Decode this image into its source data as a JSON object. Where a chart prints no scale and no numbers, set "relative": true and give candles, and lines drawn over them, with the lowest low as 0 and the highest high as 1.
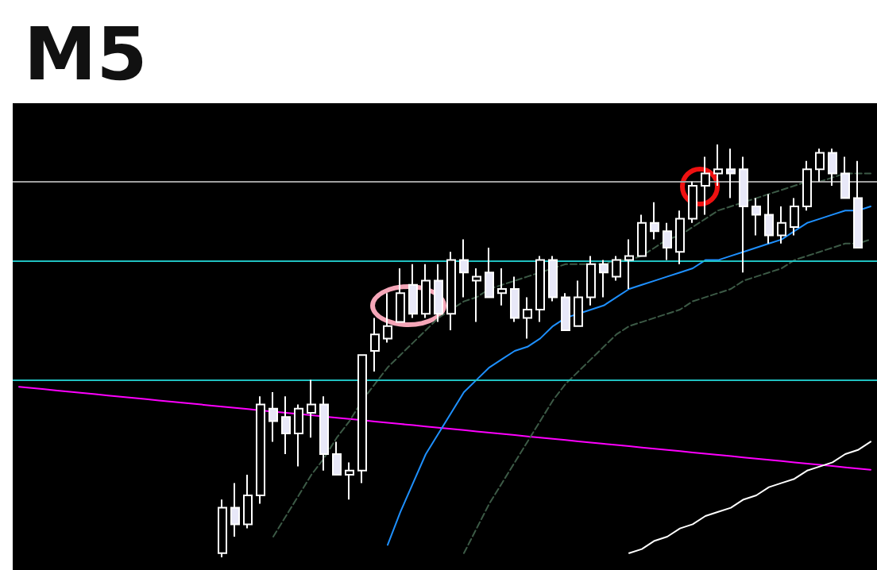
{
  "chart_data": {
    "type": "candlestick",
    "title": "M5",
    "relative": true,
    "grid": false,
    "categories": [
      null,
      null,
      null,
      null,
      null,
      null,
      null,
      null,
      null,
      null,
      null,
      null,
      null,
      null,
      null,
      null,
      null,
      null,
      null,
      null,
      null,
      null,
      null,
      null,
      null,
      null,
      null,
      null,
      null,
      null,
      null,
      null,
      null,
      null,
      null,
      null,
      null,
      null,
      null,
      null,
      null,
      null,
      null,
      null,
      null,
      null,
      null,
      null,
      null,
      null,
      null,
      null,
      null,
      null,
      null,
      null,
      null,
      null,
      null,
      null,
      null,
      null,
      null,
      null,
      null,
      null,
      null,
      null
    ],
    "ohlc": [
      null,
      null,
      null,
      null,
      null,
      null,
      null,
      null,
      null,
      null,
      null,
      null,
      null,
      null,
      null,
      null,
      [
        0.01,
        0.14,
        0,
        0.12
      ],
      [
        0.12,
        0.18,
        0.05,
        0.08
      ],
      [
        0.08,
        0.2,
        0.07,
        0.15
      ],
      [
        0.15,
        0.39,
        0.13,
        0.37
      ],
      [
        0.36,
        0.4,
        0.28,
        0.33
      ],
      [
        0.34,
        0.39,
        0.25,
        0.3
      ],
      [
        0.3,
        0.37,
        0.22,
        0.36
      ],
      [
        0.35,
        0.43,
        0.29,
        0.37
      ],
      [
        0.37,
        0.39,
        0.21,
        0.25
      ],
      [
        0.25,
        0.28,
        0.2,
        0.2
      ],
      [
        0.2,
        0.23,
        0.14,
        0.21
      ],
      [
        0.21,
        0.49,
        0.18,
        0.49
      ],
      [
        0.5,
        0.58,
        0.45,
        0.54
      ],
      [
        0.53,
        0.64,
        0.52,
        0.56
      ],
      [
        0.57,
        0.7,
        0.57,
        0.64
      ],
      [
        0.66,
        0.71,
        0.58,
        0.59
      ],
      [
        0.59,
        0.71,
        0.58,
        0.67
      ],
      [
        0.67,
        0.71,
        0.57,
        0.59
      ],
      [
        0.59,
        0.74,
        0.55,
        0.72
      ],
      [
        0.72,
        0.77,
        0.63,
        0.69
      ],
      [
        0.67,
        0.7,
        0.57,
        0.68
      ],
      [
        0.69,
        0.75,
        0.63,
        0.63
      ],
      [
        0.64,
        0.7,
        0.61,
        0.65
      ],
      [
        0.65,
        0.68,
        0.57,
        0.58
      ],
      [
        0.58,
        0.63,
        0.53,
        0.6
      ],
      [
        0.6,
        0.73,
        0.57,
        0.72
      ],
      [
        0.72,
        0.73,
        0.62,
        0.63
      ],
      [
        0.63,
        0.64,
        0.55,
        0.55
      ],
      [
        0.56,
        0.67,
        0.56,
        0.63
      ],
      [
        0.63,
        0.73,
        0.61,
        0.71
      ],
      [
        0.71,
        0.72,
        0.63,
        0.69
      ],
      [
        0.68,
        0.73,
        0.67,
        0.72
      ],
      [
        0.72,
        0.77,
        0.65,
        0.73
      ],
      [
        0.73,
        0.83,
        0.73,
        0.81
      ],
      [
        0.81,
        0.86,
        0.77,
        0.79
      ],
      [
        0.79,
        0.81,
        0.72,
        0.75
      ],
      [
        0.74,
        0.84,
        0.71,
        0.82
      ],
      [
        0.82,
        0.91,
        0.81,
        0.9
      ],
      [
        0.9,
        0.97,
        0.83,
        0.93
      ],
      [
        0.93,
        1,
        0.9,
        0.94
      ],
      [
        0.94,
        0.99,
        0.87,
        0.93
      ],
      [
        0.94,
        0.97,
        0.69,
        0.85
      ],
      [
        0.85,
        0.87,
        0.78,
        0.83
      ],
      [
        0.83,
        0.88,
        0.76,
        0.78
      ],
      [
        0.78,
        0.85,
        0.76,
        0.81
      ],
      [
        0.8,
        0.87,
        0.78,
        0.85
      ],
      [
        0.85,
        0.96,
        0.84,
        0.94
      ],
      [
        0.94,
        0.99,
        0.91,
        0.98
      ],
      [
        0.98,
        0.99,
        0.9,
        0.93
      ],
      [
        0.93,
        0.97,
        0.87,
        0.87
      ],
      [
        0.87,
        0.96,
        0.75,
        0.75
      ],
      null
    ],
    "series": [
      {
        "type": "line",
        "color": "#ff00ff",
        "line_style": "solid",
        "values": [
          0.413,
          0.41,
          0.407,
          0.404,
          0.401,
          0.398,
          0.395,
          0.392,
          0.389,
          0.386,
          0.383,
          0.38,
          0.377,
          0.374,
          0.371,
          0.368,
          0.365,
          0.362,
          0.359,
          0.356,
          0.353,
          0.35,
          0.347,
          0.344,
          0.341,
          0.338,
          0.335,
          0.332,
          0.329,
          0.326,
          0.323,
          0.32,
          0.317,
          0.314,
          0.311,
          0.308,
          0.305,
          0.302,
          0.299,
          0.296,
          0.293,
          0.29,
          0.287,
          0.284,
          0.281,
          0.278,
          0.275,
          0.272,
          0.269,
          0.266,
          0.263,
          0.26,
          0.257,
          0.254,
          0.251,
          0.248,
          0.245,
          0.242,
          0.239,
          0.236,
          0.233,
          0.23,
          0.227,
          0.224,
          0.221,
          0.218,
          0.215,
          0.212
        ]
      },
      {
        "type": "line",
        "color": "#ffffff",
        "line_style": "solid",
        "values": [
          null,
          null,
          null,
          null,
          null,
          null,
          null,
          null,
          null,
          null,
          null,
          null,
          null,
          null,
          null,
          null,
          null,
          null,
          null,
          null,
          null,
          null,
          null,
          null,
          null,
          null,
          null,
          null,
          null,
          null,
          null,
          null,
          null,
          null,
          null,
          null,
          null,
          null,
          null,
          null,
          null,
          null,
          null,
          null,
          null,
          null,
          null,
          null,
          0.01,
          0.02,
          0.04,
          0.05,
          0.07,
          0.08,
          0.1,
          0.11,
          0.12,
          0.14,
          0.15,
          0.17,
          0.18,
          0.19,
          0.21,
          0.22,
          0.23,
          0.25,
          0.26,
          0.28
        ]
      },
      {
        "type": "line",
        "color": "#3c5a46",
        "line_style": "dashed",
        "values": [
          null,
          null,
          null,
          null,
          null,
          null,
          null,
          null,
          null,
          null,
          null,
          null,
          null,
          null,
          null,
          null,
          null,
          null,
          null,
          null,
          0.05,
          0.1,
          0.15,
          0.2,
          0.24,
          0.29,
          0.33,
          0.38,
          0.42,
          0.46,
          0.49,
          0.52,
          0.55,
          0.58,
          0.6,
          0.62,
          0.63,
          0.65,
          0.66,
          0.67,
          0.68,
          0.69,
          0.7,
          0.71,
          0.71,
          0.71,
          0.71,
          0.72,
          0.72,
          0.73,
          0.75,
          0.77,
          0.78,
          0.8,
          0.82,
          0.84,
          0.85,
          0.86,
          0.87,
          0.88,
          0.89,
          0.9,
          0.91,
          0.91,
          0.92,
          0.93,
          0.93,
          0.93
        ]
      },
      {
        "type": "line",
        "color": "#3c5a46",
        "line_style": "dashed",
        "values": [
          null,
          null,
          null,
          null,
          null,
          null,
          null,
          null,
          null,
          null,
          null,
          null,
          null,
          null,
          null,
          null,
          null,
          null,
          null,
          null,
          null,
          null,
          null,
          null,
          null,
          null,
          null,
          null,
          null,
          null,
          null,
          null,
          null,
          null,
          null,
          0.01,
          0.07,
          0.13,
          0.18,
          0.23,
          0.28,
          0.33,
          0.38,
          0.42,
          0.45,
          0.48,
          0.51,
          0.54,
          0.56,
          0.57,
          0.58,
          0.59,
          0.6,
          0.62,
          0.63,
          0.64,
          0.65,
          0.67,
          0.68,
          0.69,
          0.7,
          0.72,
          0.73,
          0.74,
          0.75,
          0.76,
          0.76,
          0.77
        ]
      },
      {
        "type": "line",
        "color": "#1e90ff",
        "line_style": "solid",
        "values": [
          null,
          null,
          null,
          null,
          null,
          null,
          null,
          null,
          null,
          null,
          null,
          null,
          null,
          null,
          null,
          null,
          null,
          null,
          null,
          null,
          null,
          null,
          null,
          null,
          null,
          null,
          null,
          null,
          null,
          0.03,
          0.11,
          0.18,
          0.25,
          0.3,
          0.35,
          0.4,
          0.43,
          0.46,
          0.48,
          0.5,
          0.51,
          0.53,
          0.56,
          0.58,
          0.59,
          0.6,
          0.61,
          0.63,
          0.65,
          0.66,
          0.67,
          0.68,
          0.69,
          0.7,
          0.72,
          0.72,
          0.73,
          0.74,
          0.75,
          0.76,
          0.77,
          0.79,
          0.81,
          0.82,
          0.83,
          0.84,
          0.84,
          0.85
        ]
      }
    ],
    "ref_lines": [
      {
        "axis": "y",
        "value": 0.91,
        "color": "#a0a0a0"
      },
      {
        "axis": "y",
        "value": 0.72,
        "color": "#20c0c0"
      },
      {
        "axis": "y",
        "value": 0.43,
        "color": "#20c0c0"
      }
    ]
  }
}
